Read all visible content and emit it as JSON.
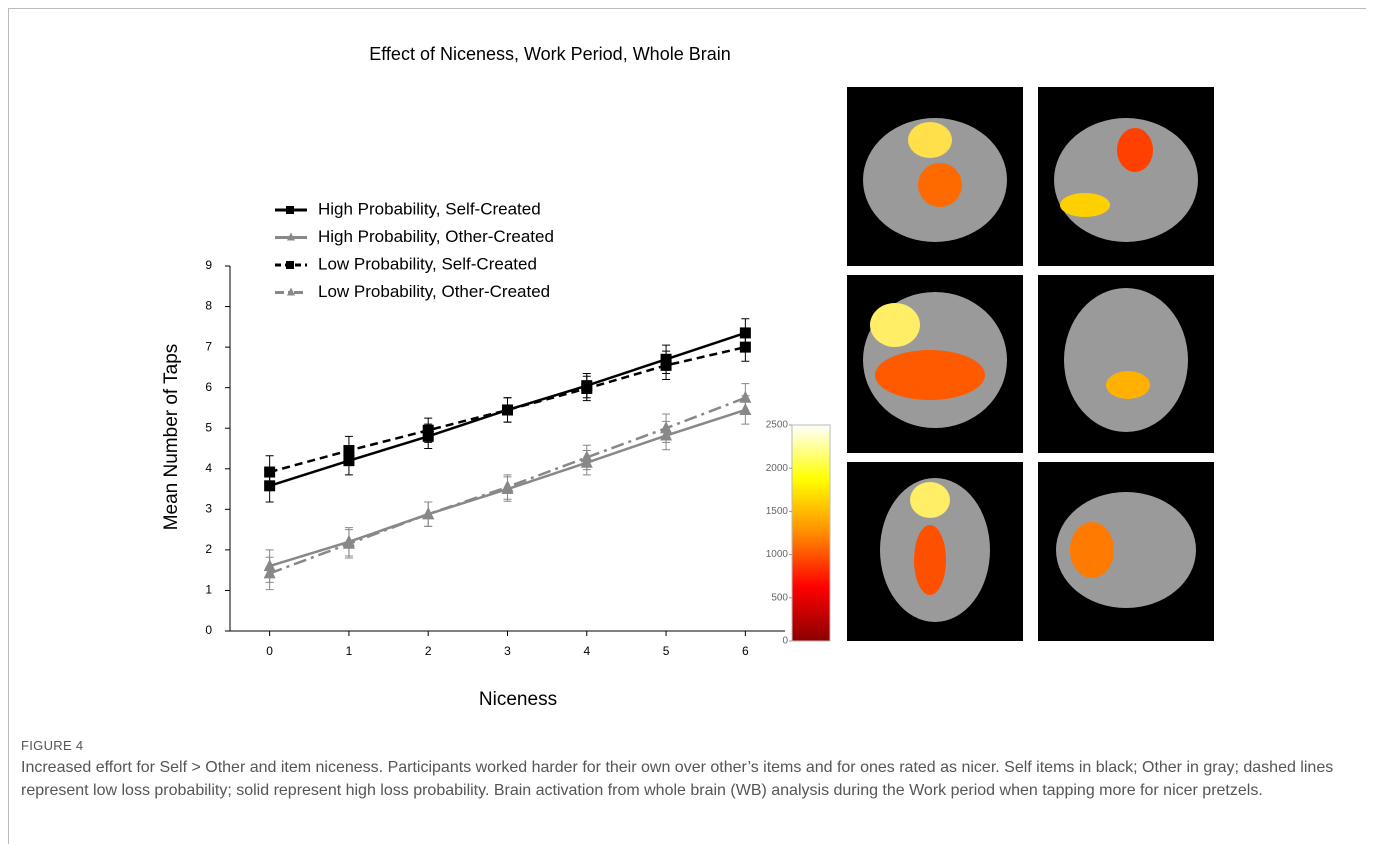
{
  "figure": {
    "label": "FIGURE 4",
    "caption": "Increased effort for Self > Other and item niceness. Participants worked harder for their own over other’s items and for ones rated as nicer. Self items in black; Other in gray; dashed lines represent low loss probability; solid represent high loss probability. Brain activation from whole brain (WB) analysis during the Work period when tapping more for nicer pretzels."
  },
  "chart_data": [
    {
      "type": "line",
      "title": "Effect of Niceness, Work Period, Whole Brain",
      "x_label": "Niceness",
      "y_label": "Mean Number of Taps",
      "x": [
        0,
        1,
        2,
        3,
        4,
        5,
        6
      ],
      "xlim": [
        -0.5,
        6.5
      ],
      "xticks": [
        0,
        1,
        2,
        3,
        4,
        5,
        6
      ],
      "ylim": [
        0,
        9
      ],
      "yticks": [
        0,
        1,
        2,
        3,
        4,
        5,
        6,
        7,
        8,
        9
      ],
      "legend": "upper left",
      "series": [
        {
          "name": "High Probability, Self-Created",
          "color": "#000000",
          "dash": "solid",
          "marker": "square",
          "values": [
            3.58,
            4.2,
            4.8,
            5.45,
            6.05,
            6.7,
            7.35
          ],
          "errors": [
            0.4,
            0.35,
            0.3,
            0.3,
            0.3,
            0.35,
            0.35
          ]
        },
        {
          "name": "High Probability, Other-Created",
          "color": "#888888",
          "dash": "solid",
          "marker": "triangle",
          "values": [
            1.6,
            2.2,
            2.88,
            3.5,
            4.15,
            4.82,
            5.45
          ],
          "errors": [
            0.4,
            0.35,
            0.3,
            0.3,
            0.3,
            0.35,
            0.35
          ]
        },
        {
          "name": "Low Probability, Self-Created",
          "color": "#000000",
          "dash": "dashed",
          "marker": "square",
          "values": [
            3.92,
            4.45,
            4.95,
            5.45,
            5.98,
            6.55,
            7.0
          ],
          "errors": [
            0.4,
            0.35,
            0.3,
            0.3,
            0.3,
            0.35,
            0.35
          ]
        },
        {
          "name": "Low Probability, Other-Created",
          "color": "#888888",
          "dash": "dashdot",
          "marker": "triangle",
          "values": [
            1.42,
            2.15,
            2.88,
            3.55,
            4.28,
            5.0,
            5.75
          ],
          "errors": [
            0.4,
            0.35,
            0.3,
            0.3,
            0.3,
            0.35,
            0.35
          ]
        }
      ]
    },
    {
      "type": "colorbar",
      "ylim": [
        0,
        2500
      ],
      "yticks": [
        0,
        500,
        1000,
        1500,
        2000,
        2500
      ],
      "colors": [
        "#8b0000",
        "#ff0000",
        "#ff8c00",
        "#ffff00",
        "#ffffff"
      ]
    }
  ]
}
